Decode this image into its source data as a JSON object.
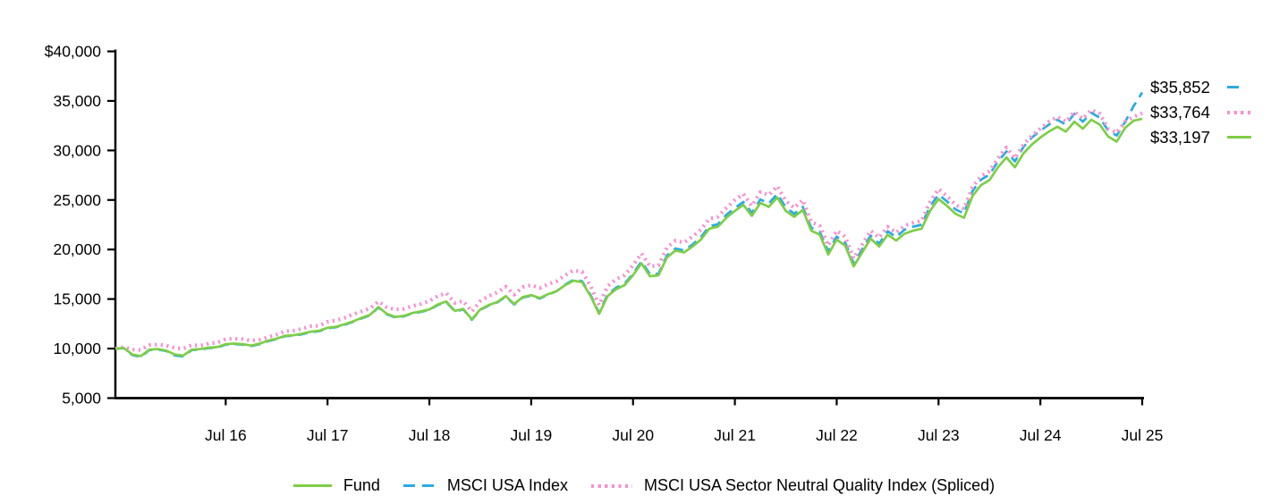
{
  "chart_data": {
    "type": "line",
    "title": "",
    "xlabel": "",
    "ylabel": "",
    "grid": false,
    "legend_position": "bottom-center",
    "ylim": [
      5000,
      40000
    ],
    "y_ticks": [
      {
        "label": "$40,000",
        "value": 40000
      },
      {
        "label": "35,000",
        "value": 35000
      },
      {
        "label": "30,000",
        "value": 30000
      },
      {
        "label": "25,000",
        "value": 25000
      },
      {
        "label": "20,000",
        "value": 20000
      },
      {
        "label": "15,000",
        "value": 15000
      },
      {
        "label": "10,000",
        "value": 10000
      },
      {
        "label": "5,000",
        "value": 5000
      }
    ],
    "x_ticks": [
      {
        "label": "Jul 16",
        "index": 13
      },
      {
        "label": "Jul 17",
        "index": 25
      },
      {
        "label": "Jul 18",
        "index": 37
      },
      {
        "label": "Jul 19",
        "index": 49
      },
      {
        "label": "Jul 20",
        "index": 61
      },
      {
        "label": "Jul 21",
        "index": 73
      },
      {
        "label": "Jul 22",
        "index": 85
      },
      {
        "label": "Jul 23",
        "index": 97
      },
      {
        "label": "Jul 24",
        "index": 109
      },
      {
        "label": "Jul 25",
        "index": 121
      }
    ],
    "x_start": "Jun 2015",
    "x_end": "Jul 2025",
    "x_interval": "monthly",
    "draw_order": [
      1,
      2,
      0
    ],
    "series": [
      {
        "name": "Fund",
        "style": "solid",
        "color": "#7DCE46",
        "end_label": "$33,197",
        "end_value": 33197,
        "values": [
          10000,
          10050,
          9400,
          9250,
          9900,
          9950,
          9800,
          9400,
          9300,
          9900,
          9950,
          10100,
          10150,
          10450,
          10500,
          10450,
          10300,
          10500,
          10800,
          11000,
          11300,
          11350,
          11500,
          11700,
          11800,
          12100,
          12200,
          12450,
          12750,
          13100,
          13400,
          14200,
          13500,
          13200,
          13300,
          13600,
          13750,
          13950,
          14450,
          14750,
          13800,
          14000,
          12950,
          13950,
          14400,
          14700,
          15300,
          14500,
          15200,
          15400,
          15100,
          15500,
          15800,
          16400,
          16850,
          16700,
          15300,
          13500,
          15300,
          16000,
          16400,
          17400,
          18600,
          17300,
          17400,
          19200,
          19900,
          19700,
          20300,
          21000,
          22100,
          22300,
          23200,
          23900,
          24500,
          23400,
          24700,
          24300,
          25250,
          23900,
          23300,
          24000,
          21900,
          21500,
          19500,
          21000,
          20400,
          18300,
          19700,
          21100,
          20300,
          21500,
          20900,
          21600,
          21900,
          22100,
          23900,
          25100,
          24400,
          23600,
          23200,
          25400,
          26500,
          27000,
          28300,
          29300,
          28300,
          29700,
          30600,
          31300,
          31900,
          32400,
          31900,
          32900,
          32200,
          33100,
          32600,
          31400,
          30900,
          32300,
          33000,
          33197
        ]
      },
      {
        "name": "MSCI USA Index",
        "style": "dashed",
        "color": "#29ABE2",
        "end_label": "$35,852",
        "end_value": 35852,
        "values": [
          10000,
          10030,
          9350,
          9150,
          9850,
          9900,
          9750,
          9300,
          9200,
          9850,
          9900,
          10050,
          10100,
          10400,
          10450,
          10400,
          10250,
          10450,
          10750,
          10950,
          11250,
          11300,
          11450,
          11650,
          11750,
          12050,
          12150,
          12400,
          12700,
          13050,
          13350,
          14150,
          13450,
          13150,
          13250,
          13550,
          13700,
          13900,
          14400,
          14700,
          13750,
          13950,
          12900,
          13900,
          14350,
          14650,
          15250,
          14450,
          15150,
          15350,
          15050,
          15450,
          15800,
          16450,
          16950,
          16800,
          15400,
          13600,
          15450,
          16150,
          16550,
          17550,
          18800,
          17500,
          17550,
          19400,
          20100,
          19900,
          20500,
          21250,
          22350,
          22550,
          23500,
          24200,
          24800,
          23700,
          25050,
          24650,
          25600,
          24250,
          23600,
          24300,
          22200,
          21800,
          19800,
          21300,
          20700,
          18600,
          20000,
          21400,
          20600,
          21850,
          21250,
          22000,
          22300,
          22500,
          24350,
          25550,
          24850,
          24050,
          23650,
          25900,
          27050,
          27550,
          28900,
          29900,
          28900,
          30350,
          31300,
          32000,
          32600,
          33100,
          32600,
          33700,
          32900,
          33800,
          33300,
          32000,
          31500,
          32900,
          34500,
          35852
        ]
      },
      {
        "name": "MSCI USA Sector Neutral Quality Index (Spliced)",
        "style": "dotted",
        "color": "#F78FD2",
        "end_label": "$33,764",
        "end_value": 33764,
        "values": [
          10000,
          10150,
          9900,
          9850,
          10350,
          10400,
          10300,
          10050,
          10000,
          10350,
          10300,
          10500,
          10600,
          10950,
          11000,
          10950,
          10800,
          10900,
          11150,
          11400,
          11750,
          11800,
          12000,
          12250,
          12300,
          12700,
          12850,
          13100,
          13450,
          13750,
          14050,
          14750,
          14150,
          13950,
          14000,
          14300,
          14500,
          14800,
          15300,
          15600,
          14600,
          14800,
          13750,
          14800,
          15300,
          15650,
          16250,
          15450,
          16200,
          16400,
          16100,
          16500,
          16800,
          17400,
          17900,
          17750,
          16300,
          14400,
          16300,
          17000,
          17400,
          18400,
          19600,
          18300,
          18400,
          20200,
          20900,
          20700,
          21300,
          22000,
          23100,
          23300,
          24200,
          25000,
          25600,
          24400,
          25800,
          25500,
          26400,
          24900,
          24200,
          25000,
          22800,
          22400,
          20400,
          21900,
          21300,
          19100,
          20500,
          21900,
          21200,
          22300,
          21700,
          22400,
          22700,
          22900,
          24800,
          26100,
          25400,
          24500,
          24100,
          26300,
          27400,
          27900,
          29200,
          30300,
          29200,
          30600,
          31500,
          32200,
          32900,
          33400,
          32900,
          33900,
          33200,
          34100,
          33700,
          32200,
          31800,
          32900,
          33400,
          33764
        ]
      }
    ],
    "legend": [
      "Fund",
      "MSCI USA Index",
      "MSCI USA Sector Neutral Quality Index (Spliced)"
    ]
  }
}
